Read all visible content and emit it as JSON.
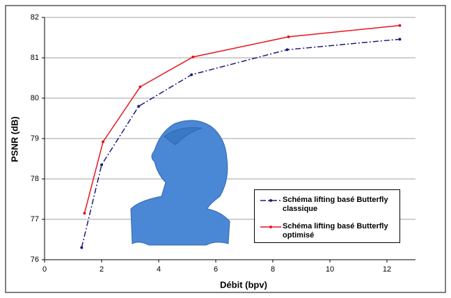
{
  "chart_data": {
    "type": "line",
    "xlabel": "Débit (bpv)",
    "ylabel": "PSNR (dB)",
    "xlim": [
      0,
      13
    ],
    "xticks": [
      0,
      2,
      4,
      6,
      8,
      10,
      12
    ],
    "ylim": [
      76,
      82
    ],
    "yticks": [
      76,
      77,
      78,
      79,
      80,
      81,
      82
    ],
    "grid": true,
    "legend": "lower right",
    "series": [
      {
        "name": "Schéma lifting basé Butterfly classique",
        "color": "#1a1a7a",
        "linestyle": "dashdot",
        "x": [
          1.3,
          2.0,
          3.3,
          5.15,
          8.5,
          12.45
        ],
        "values": [
          76.3,
          78.35,
          79.8,
          80.58,
          81.2,
          81.46
        ]
      },
      {
        "name": "Schéma lifting basé Butterfly optimisé",
        "color": "#e8141c",
        "linestyle": "solid",
        "x": [
          1.4,
          2.05,
          3.35,
          5.2,
          8.55,
          12.45
        ],
        "values": [
          77.15,
          78.92,
          80.28,
          81.02,
          81.52,
          81.8
        ]
      }
    ]
  }
}
